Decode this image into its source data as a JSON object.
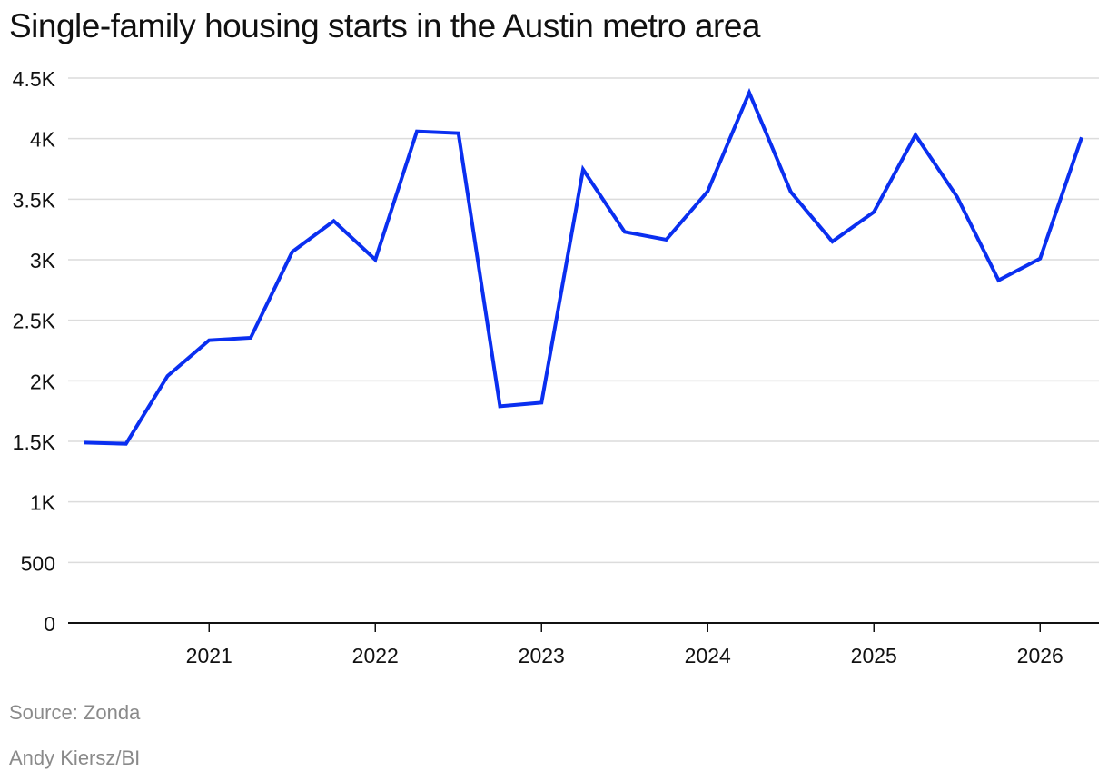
{
  "header": {
    "title": "Single-family housing starts in the Austin metro area"
  },
  "footer": {
    "source": "Source: Zonda",
    "credit": "Andy Kiersz/BI"
  },
  "chart_data": {
    "type": "line",
    "title": "Single-family housing starts in the Austin metro area",
    "xlabel": "",
    "ylabel": "",
    "x": [
      "2020 Q2",
      "2020 Q3",
      "2020 Q4",
      "2021 Q1",
      "2021 Q2",
      "2021 Q3",
      "2021 Q4",
      "2022 Q1",
      "2022 Q2",
      "2022 Q3",
      "2022 Q4",
      "2023 Q1",
      "2023 Q2",
      "2023 Q3",
      "2023 Q4",
      "2024 Q1",
      "2024 Q2",
      "2024 Q3",
      "2024 Q4",
      "2025 Q1",
      "2025 Q2",
      "2025 Q3",
      "2025 Q4",
      "2026 Q1",
      "2026 Q2"
    ],
    "series": [
      {
        "values": [
          1490,
          1480,
          2040,
          2335,
          2355,
          3065,
          3320,
          3000,
          4060,
          4045,
          1790,
          1820,
          3745,
          3230,
          3165,
          3565,
          4380,
          3560,
          3150,
          3395,
          4030,
          3520,
          2830,
          3010,
          4010
        ],
        "color": "#0a2ff0"
      }
    ],
    "x_ticks": [
      "2021",
      "2022",
      "2023",
      "2024",
      "2025",
      "2026"
    ],
    "y_ticks": [
      "0",
      "500",
      "1K",
      "1.5K",
      "2K",
      "2.5K",
      "3K",
      "3.5K",
      "4K",
      "4.5K"
    ],
    "ylim": [
      0,
      4500
    ],
    "xlim": [
      "2020 Q2",
      "2026 Q2"
    ],
    "grid": "horizontal",
    "legend": "none",
    "colors": {
      "line": "#0a2ff0",
      "grid": "#dcdcdc",
      "axis": "#111111",
      "muted_text": "#8a8a8a"
    }
  }
}
